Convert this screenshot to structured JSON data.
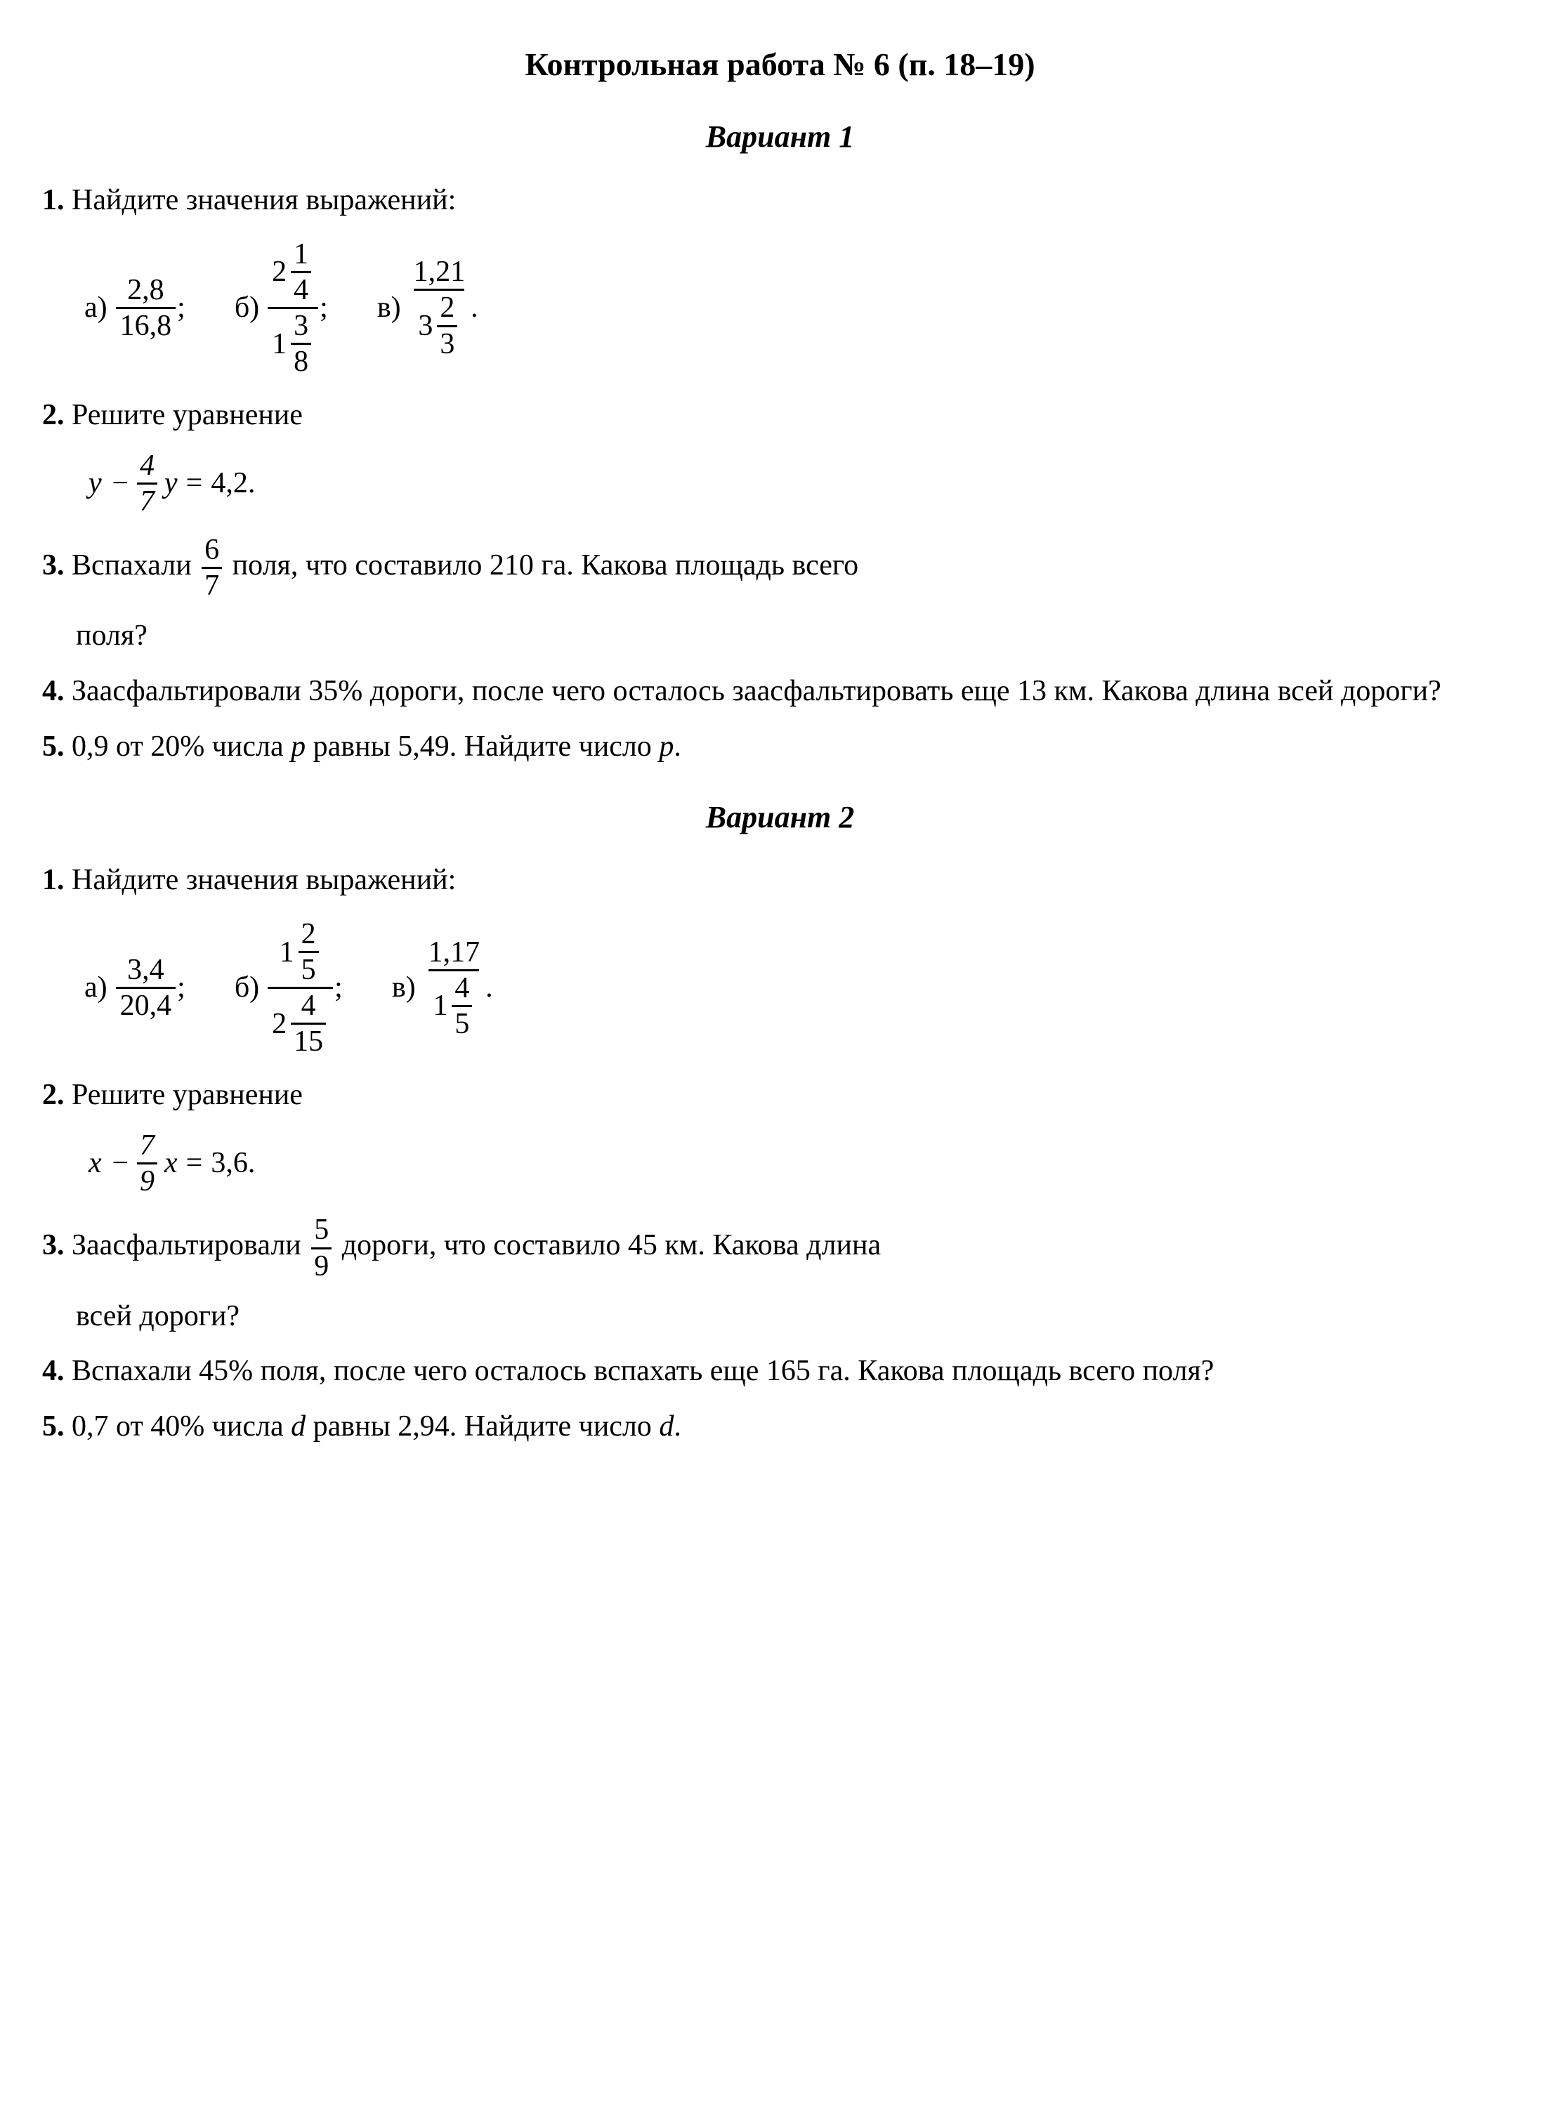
{
  "title": "Контрольная работа № 6 (п. 18–19)",
  "variant1": {
    "heading": "Вариант 1",
    "t1": {
      "num": "1.",
      "text": "Найдите значения выражений:",
      "a": {
        "label": "а)",
        "top": "2,8",
        "bot": "16,8",
        "punct": ";"
      },
      "b": {
        "label": "б)",
        "top_whole": "2",
        "top_num": "1",
        "top_den": "4",
        "bot_whole": "1",
        "bot_num": "3",
        "bot_den": "8",
        "punct": ";"
      },
      "c": {
        "label": "в)",
        "top": "1,21",
        "bot_whole": "3",
        "bot_num": "2",
        "bot_den": "3",
        "punct": "."
      }
    },
    "t2": {
      "num": "2.",
      "text": "Решите уравнение",
      "eq_var1": "y",
      "eq_minus": "−",
      "eq_frac_num": "4",
      "eq_frac_den": "7",
      "eq_var2": "y",
      "eq_eq": "=",
      "eq_rhs": "4,2."
    },
    "t3": {
      "num": "3.",
      "pre": "Вспахали",
      "frac_num": "6",
      "frac_den": "7",
      "post": "поля, что составило 210 га. Какова площадь всего",
      "line2": "поля?"
    },
    "t4": {
      "num": "4.",
      "text": "Заасфальтировали 35% дороги, после чего осталось заасфаль­тировать еще 13 км. Какова длина всей дороги?"
    },
    "t5": {
      "num": "5.",
      "pre": "0,9 от 20% числа ",
      "var": "p",
      "mid": " равны 5,49. Найдите число ",
      "var2": "p",
      "end": "."
    }
  },
  "variant2": {
    "heading": "Вариант 2",
    "t1": {
      "num": "1.",
      "text": "Найдите значения выражений:",
      "a": {
        "label": "а)",
        "top": "3,4",
        "bot": "20,4",
        "punct": ";"
      },
      "b": {
        "label": "б)",
        "top_whole": "1",
        "top_num": "2",
        "top_den": "5",
        "bot_whole": "2",
        "bot_num": "4",
        "bot_den": "15",
        "punct": ";"
      },
      "c": {
        "label": "в)",
        "top": "1,17",
        "bot_whole": "1",
        "bot_num": "4",
        "bot_den": "5",
        "punct": "."
      }
    },
    "t2": {
      "num": "2.",
      "text": "Решите уравнение",
      "eq_var1": "x",
      "eq_minus": "−",
      "eq_frac_num": "7",
      "eq_frac_den": "9",
      "eq_var2": "x",
      "eq_eq": "=",
      "eq_rhs": "3,6."
    },
    "t3": {
      "num": "3.",
      "pre": "Заасфальтировали",
      "frac_num": "5",
      "frac_den": "9",
      "post": "дороги, что составило 45 км. Какова длина",
      "line2": "всей дороги?"
    },
    "t4": {
      "num": "4.",
      "text": "Вспахали 45% поля, после чего осталось вспахать еще 165 га. Ка­кова площадь всего поля?"
    },
    "t5": {
      "num": "5.",
      "pre": "0,7 от 40% числа ",
      "var": "d",
      "mid": " равны 2,94. Найдите число ",
      "var2": "d",
      "end": "."
    }
  }
}
